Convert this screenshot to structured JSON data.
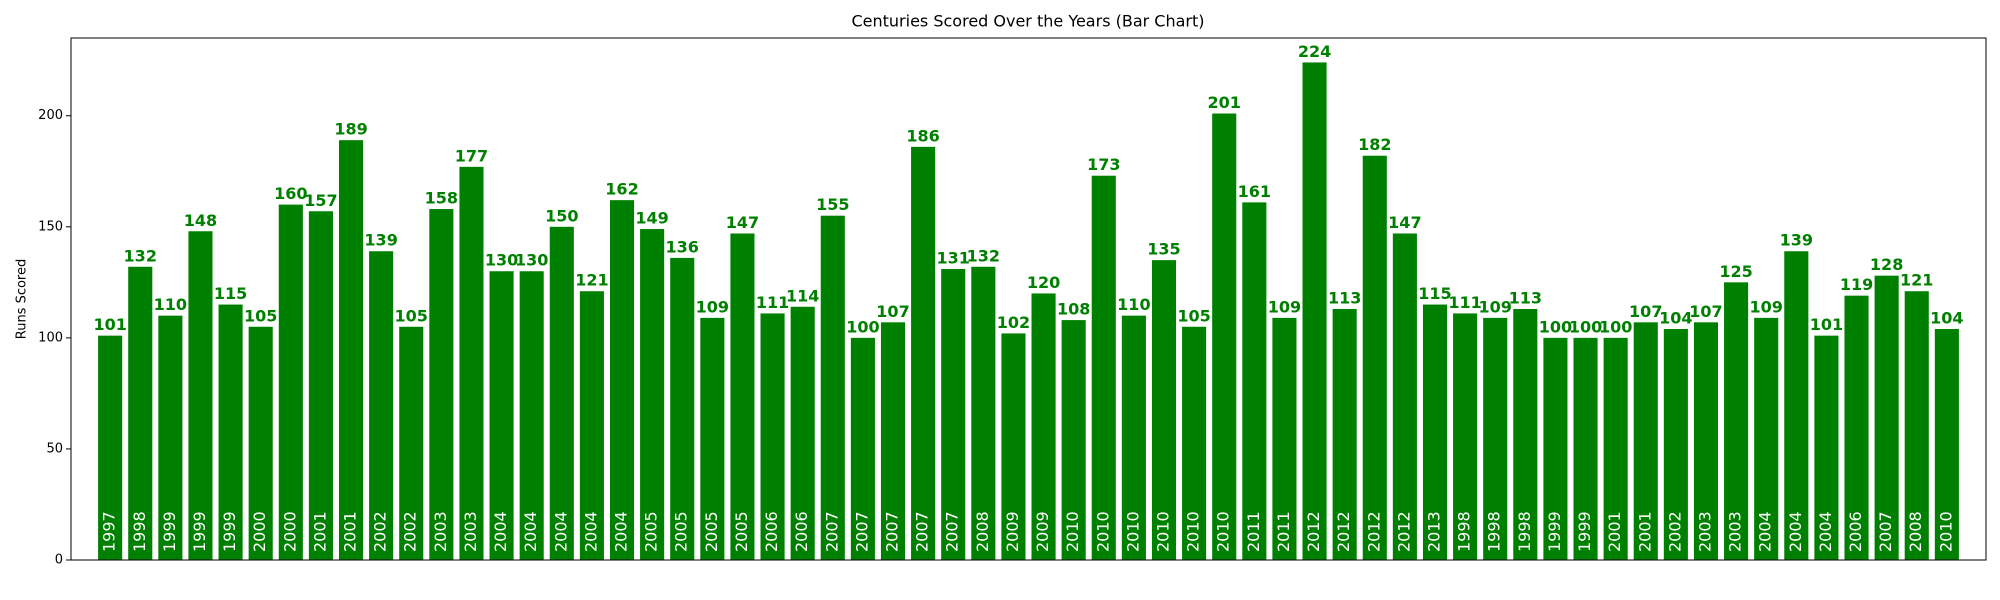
{
  "chart_data": {
    "type": "bar",
    "title": "Centuries Scored Over the Years (Bar Chart)",
    "y_label": "Runs Scored",
    "categories": [
      "1997",
      "1998",
      "1999",
      "1999",
      "1999",
      "2000",
      "2000",
      "2001",
      "2001",
      "2002",
      "2002",
      "2003",
      "2003",
      "2004",
      "2004",
      "2004",
      "2004",
      "2004",
      "2005",
      "2005",
      "2005",
      "2005",
      "2006",
      "2006",
      "2007",
      "2007",
      "2007",
      "2007",
      "2007",
      "2008",
      "2009",
      "2009",
      "2010",
      "2010",
      "2010",
      "2010",
      "2010",
      "2010",
      "2011",
      "2011",
      "2012",
      "2012",
      "2012",
      "2012",
      "2013",
      "1998",
      "1998",
      "1998",
      "1999",
      "1999",
      "2001",
      "2001",
      "2002",
      "2003",
      "2003",
      "2004",
      "2004",
      "2004",
      "2006",
      "2007",
      "2008",
      "2010"
    ],
    "values": [
      101,
      132,
      110,
      148,
      115,
      105,
      160,
      157,
      189,
      139,
      105,
      158,
      177,
      130,
      130,
      150,
      121,
      162,
      149,
      136,
      109,
      147,
      111,
      114,
      155,
      100,
      107,
      186,
      131,
      132,
      102,
      120,
      108,
      173,
      110,
      135,
      105,
      201,
      161,
      109,
      224,
      113,
      182,
      147,
      115,
      111,
      109,
      113,
      100,
      100,
      100,
      107,
      104,
      107,
      125,
      109,
      139,
      101,
      119,
      128,
      121,
      104
    ],
    "color": "#008000",
    "ylim": [
      0,
      235
    ],
    "yticks": [
      0,
      50,
      100,
      150,
      200
    ],
    "grid": false
  }
}
